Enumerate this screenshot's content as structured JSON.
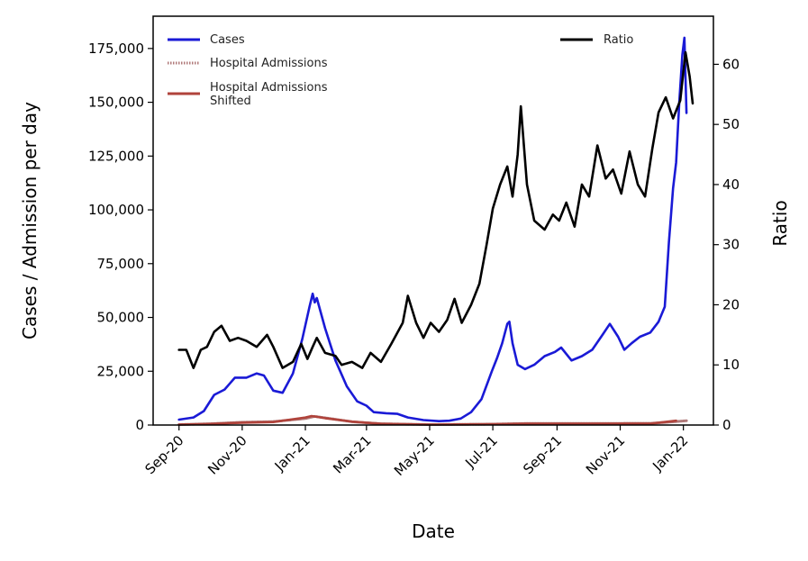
{
  "chart_data": {
    "type": "line",
    "xlabel": "Date",
    "ylabel_left": "Cases / Admission per day",
    "ylabel_right": "Ratio",
    "x_ticks": [
      {
        "label": "Sep-20",
        "date": "2020-09-01"
      },
      {
        "label": "Nov-20",
        "date": "2020-11-01"
      },
      {
        "label": "Jan-21",
        "date": "2021-01-01"
      },
      {
        "label": "Mar-21",
        "date": "2021-03-01"
      },
      {
        "label": "May-21",
        "date": "2021-05-01"
      },
      {
        "label": "Jul-21",
        "date": "2021-07-01"
      },
      {
        "label": "Sep-21",
        "date": "2021-09-01"
      },
      {
        "label": "Nov-21",
        "date": "2021-11-01"
      },
      {
        "label": "Jan-22",
        "date": "2022-01-01"
      }
    ],
    "xlim": [
      "2020-08-07",
      "2022-01-30"
    ],
    "ylim_left": [
      0,
      190000
    ],
    "ylim_right": [
      0,
      68
    ],
    "y_ticks_left": [
      {
        "value": 0,
        "label": "0"
      },
      {
        "value": 25000,
        "label": "25,000"
      },
      {
        "value": 50000,
        "label": "50,000"
      },
      {
        "value": 75000,
        "label": "75,000"
      },
      {
        "value": 100000,
        "label": "100,000"
      },
      {
        "value": 125000,
        "label": "125,000"
      },
      {
        "value": 150000,
        "label": "150,000"
      },
      {
        "value": 175000,
        "label": "175,000"
      }
    ],
    "y_ticks_right": [
      {
        "value": 0,
        "label": "0"
      },
      {
        "value": 10,
        "label": "10"
      },
      {
        "value": 20,
        "label": "20"
      },
      {
        "value": 30,
        "label": "30"
      },
      {
        "value": 40,
        "label": "40"
      },
      {
        "value": 50,
        "label": "50"
      },
      {
        "value": 60,
        "label": "60"
      }
    ],
    "legend_left": {
      "placement": "top-left",
      "entries": [
        "Cases",
        "Hospital Admissions",
        "Hospital Admissions Shifted"
      ]
    },
    "legend_right": {
      "placement": "top-right",
      "entries": [
        "Ratio"
      ]
    },
    "series": [
      {
        "name": "Cases",
        "axis": "left",
        "color": "#1a1ad6",
        "style": "solid",
        "points": [
          [
            "2020-09-01",
            2500
          ],
          [
            "2020-09-15",
            3500
          ],
          [
            "2020-09-25",
            6500
          ],
          [
            "2020-10-05",
            14000
          ],
          [
            "2020-10-15",
            16500
          ],
          [
            "2020-10-25",
            22000
          ],
          [
            "2020-11-05",
            22000
          ],
          [
            "2020-11-15",
            24000
          ],
          [
            "2020-11-22",
            23000
          ],
          [
            "2020-12-01",
            16000
          ],
          [
            "2020-12-10",
            15000
          ],
          [
            "2020-12-20",
            24000
          ],
          [
            "2020-12-29",
            40000
          ],
          [
            "2021-01-05",
            55000
          ],
          [
            "2021-01-08",
            61000
          ],
          [
            "2021-01-10",
            57000
          ],
          [
            "2021-01-12",
            59000
          ],
          [
            "2021-01-20",
            45000
          ],
          [
            "2021-01-30",
            30000
          ],
          [
            "2021-02-10",
            18000
          ],
          [
            "2021-02-20",
            11000
          ],
          [
            "2021-03-01",
            9000
          ],
          [
            "2021-03-08",
            6000
          ],
          [
            "2021-03-20",
            5500
          ],
          [
            "2021-03-31",
            5200
          ],
          [
            "2021-04-10",
            3500
          ],
          [
            "2021-04-25",
            2300
          ],
          [
            "2021-05-10",
            1800
          ],
          [
            "2021-05-20",
            2000
          ],
          [
            "2021-05-31",
            3000
          ],
          [
            "2021-06-10",
            6000
          ],
          [
            "2021-06-20",
            12000
          ],
          [
            "2021-06-30",
            25000
          ],
          [
            "2021-07-05",
            31000
          ],
          [
            "2021-07-10",
            38000
          ],
          [
            "2021-07-15",
            47000
          ],
          [
            "2021-07-17",
            48000
          ],
          [
            "2021-07-20",
            38000
          ],
          [
            "2021-07-25",
            28000
          ],
          [
            "2021-08-01",
            26000
          ],
          [
            "2021-08-10",
            28000
          ],
          [
            "2021-08-20",
            32000
          ],
          [
            "2021-08-30",
            34000
          ],
          [
            "2021-09-05",
            36000
          ],
          [
            "2021-09-15",
            30000
          ],
          [
            "2021-09-25",
            32000
          ],
          [
            "2021-10-05",
            35000
          ],
          [
            "2021-10-15",
            42000
          ],
          [
            "2021-10-22",
            47000
          ],
          [
            "2021-10-30",
            41000
          ],
          [
            "2021-11-05",
            35000
          ],
          [
            "2021-11-12",
            38000
          ],
          [
            "2021-11-20",
            41000
          ],
          [
            "2021-11-30",
            43000
          ],
          [
            "2021-12-08",
            48000
          ],
          [
            "2021-12-14",
            55000
          ],
          [
            "2021-12-18",
            85000
          ],
          [
            "2021-12-22",
            110000
          ],
          [
            "2021-12-25",
            122000
          ],
          [
            "2021-12-28",
            150000
          ],
          [
            "2021-12-31",
            172000
          ],
          [
            "2022-01-02",
            180000
          ],
          [
            "2022-01-04",
            145000
          ]
        ]
      },
      {
        "name": "Hospital Admissions",
        "axis": "left",
        "color": "#b07a7a",
        "style": "dotted",
        "points": [
          [
            "2020-09-01",
            200
          ],
          [
            "2020-10-01",
            600
          ],
          [
            "2020-11-01",
            1300
          ],
          [
            "2020-12-01",
            1600
          ],
          [
            "2021-01-01",
            3000
          ],
          [
            "2021-01-10",
            4000
          ],
          [
            "2021-01-25",
            3000
          ],
          [
            "2021-02-15",
            1500
          ],
          [
            "2021-03-15",
            600
          ],
          [
            "2021-05-01",
            200
          ],
          [
            "2021-07-01",
            400
          ],
          [
            "2021-08-01",
            700
          ],
          [
            "2021-10-01",
            700
          ],
          [
            "2021-12-01",
            800
          ],
          [
            "2021-12-25",
            1600
          ],
          [
            "2022-01-04",
            2000
          ]
        ]
      },
      {
        "name": "Hospital Admissions Shifted",
        "axis": "left",
        "color": "#b0433b",
        "style": "solid",
        "points": [
          [
            "2020-09-01",
            200
          ],
          [
            "2020-10-01",
            500
          ],
          [
            "2020-11-01",
            1100
          ],
          [
            "2020-12-01",
            1400
          ],
          [
            "2021-01-01",
            3500
          ],
          [
            "2021-01-07",
            4200
          ],
          [
            "2021-01-20",
            3200
          ],
          [
            "2021-02-15",
            1600
          ],
          [
            "2021-03-15",
            600
          ],
          [
            "2021-05-01",
            200
          ],
          [
            "2021-07-01",
            400
          ],
          [
            "2021-08-01",
            600
          ],
          [
            "2021-10-01",
            600
          ],
          [
            "2021-12-01",
            700
          ],
          [
            "2021-12-25",
            2000
          ]
        ]
      },
      {
        "name": "Ratio",
        "axis": "right",
        "color": "#000000",
        "style": "solid",
        "points": [
          [
            "2020-09-01",
            12.5
          ],
          [
            "2020-09-08",
            12.5
          ],
          [
            "2020-09-15",
            9.5
          ],
          [
            "2020-09-22",
            12.5
          ],
          [
            "2020-09-28",
            13
          ],
          [
            "2020-10-05",
            15.5
          ],
          [
            "2020-10-12",
            16.5
          ],
          [
            "2020-10-20",
            14
          ],
          [
            "2020-10-28",
            14.5
          ],
          [
            "2020-11-05",
            14
          ],
          [
            "2020-11-15",
            13
          ],
          [
            "2020-11-25",
            15
          ],
          [
            "2020-12-01",
            13
          ],
          [
            "2020-12-10",
            9.5
          ],
          [
            "2020-12-20",
            10.5
          ],
          [
            "2020-12-28",
            13.5
          ],
          [
            "2021-01-03",
            11
          ],
          [
            "2021-01-08",
            13
          ],
          [
            "2021-01-12",
            14.5
          ],
          [
            "2021-01-20",
            12
          ],
          [
            "2021-01-30",
            11.5
          ],
          [
            "2021-02-05",
            10
          ],
          [
            "2021-02-15",
            10.5
          ],
          [
            "2021-02-25",
            9.5
          ],
          [
            "2021-03-05",
            12
          ],
          [
            "2021-03-15",
            10.5
          ],
          [
            "2021-03-25",
            13.5
          ],
          [
            "2021-04-05",
            17
          ],
          [
            "2021-04-10",
            21.5
          ],
          [
            "2021-04-18",
            17
          ],
          [
            "2021-04-25",
            14.5
          ],
          [
            "2021-05-02",
            17
          ],
          [
            "2021-05-10",
            15.5
          ],
          [
            "2021-05-18",
            17.5
          ],
          [
            "2021-05-25",
            21
          ],
          [
            "2021-06-01",
            17
          ],
          [
            "2021-06-10",
            20
          ],
          [
            "2021-06-18",
            23.5
          ],
          [
            "2021-06-25",
            30
          ],
          [
            "2021-07-01",
            36
          ],
          [
            "2021-07-08",
            40
          ],
          [
            "2021-07-15",
            43
          ],
          [
            "2021-07-20",
            38
          ],
          [
            "2021-07-25",
            45
          ],
          [
            "2021-07-28",
            53
          ],
          [
            "2021-08-03",
            40
          ],
          [
            "2021-08-10",
            34
          ],
          [
            "2021-08-20",
            32.5
          ],
          [
            "2021-08-28",
            35
          ],
          [
            "2021-09-03",
            34
          ],
          [
            "2021-09-10",
            37
          ],
          [
            "2021-09-18",
            33
          ],
          [
            "2021-09-25",
            40
          ],
          [
            "2021-10-02",
            38
          ],
          [
            "2021-10-10",
            46.5
          ],
          [
            "2021-10-18",
            41
          ],
          [
            "2021-10-25",
            42.5
          ],
          [
            "2021-11-02",
            38.5
          ],
          [
            "2021-11-10",
            45.5
          ],
          [
            "2021-11-18",
            40
          ],
          [
            "2021-11-25",
            38
          ],
          [
            "2021-12-02",
            46
          ],
          [
            "2021-12-08",
            52
          ],
          [
            "2021-12-15",
            54.5
          ],
          [
            "2021-12-22",
            51
          ],
          [
            "2021-12-29",
            54
          ],
          [
            "2022-01-03",
            62
          ],
          [
            "2022-01-07",
            58
          ],
          [
            "2022-01-10",
            53.5
          ]
        ]
      }
    ]
  }
}
